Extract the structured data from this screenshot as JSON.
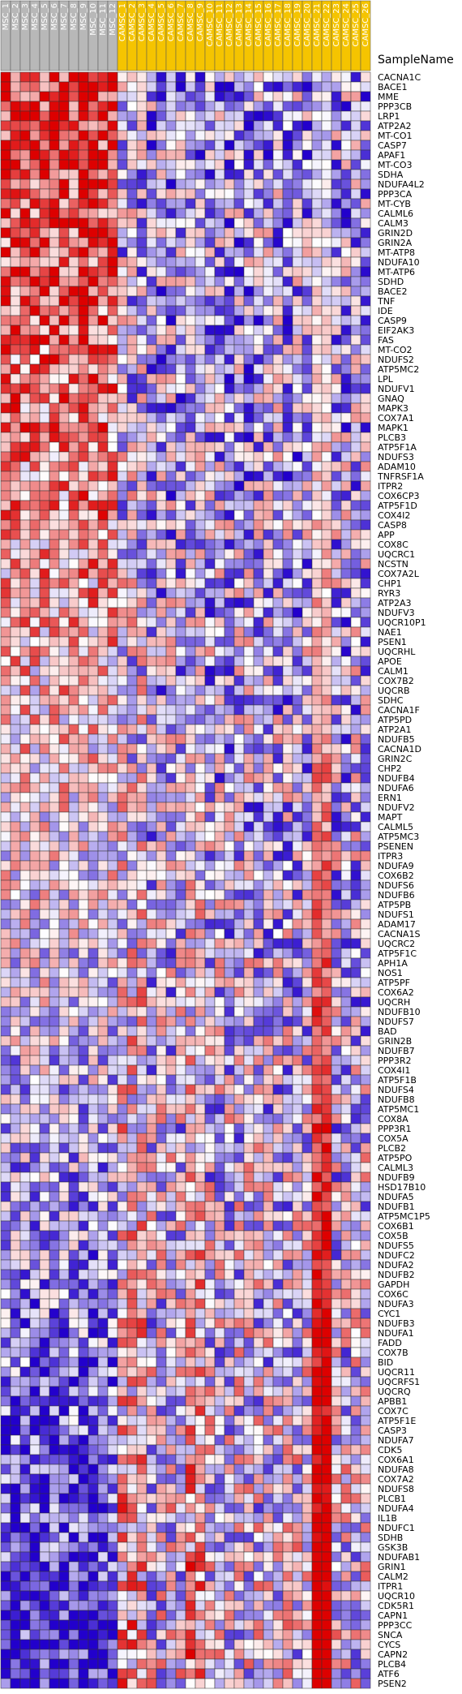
{
  "chart_data": {
    "type": "heatmap",
    "title": "",
    "row_header": "SampleName",
    "columns": [
      {
        "name": "MSC_1",
        "group": "MSC"
      },
      {
        "name": "MSC_2",
        "group": "MSC"
      },
      {
        "name": "MSC_3",
        "group": "MSC"
      },
      {
        "name": "MSC_4",
        "group": "MSC"
      },
      {
        "name": "MSC_5",
        "group": "MSC"
      },
      {
        "name": "MSC_6",
        "group": "MSC"
      },
      {
        "name": "MSC_7",
        "group": "MSC"
      },
      {
        "name": "MSC_8",
        "group": "MSC"
      },
      {
        "name": "MSC_9",
        "group": "MSC"
      },
      {
        "name": "MSC_10",
        "group": "MSC"
      },
      {
        "name": "MSC_11",
        "group": "MSC"
      },
      {
        "name": "MSC_12",
        "group": "MSC"
      },
      {
        "name": "CAMSC_1",
        "group": "CAMSC"
      },
      {
        "name": "CAMSC_2",
        "group": "CAMSC"
      },
      {
        "name": "CAMSC_3",
        "group": "CAMSC"
      },
      {
        "name": "CAMSC_4",
        "group": "CAMSC"
      },
      {
        "name": "CAMSC_5",
        "group": "CAMSC"
      },
      {
        "name": "CAMSC_6",
        "group": "CAMSC"
      },
      {
        "name": "CAMSC_7",
        "group": "CAMSC"
      },
      {
        "name": "CAMSC_8",
        "group": "CAMSC"
      },
      {
        "name": "CAMSC_9",
        "group": "CAMSC"
      },
      {
        "name": "CAMSC_10",
        "group": "CAMSC"
      },
      {
        "name": "CAMSC_11",
        "group": "CAMSC"
      },
      {
        "name": "CAMSC_12",
        "group": "CAMSC"
      },
      {
        "name": "CAMSC_13",
        "group": "CAMSC"
      },
      {
        "name": "CAMSC_14",
        "group": "CAMSC"
      },
      {
        "name": "CAMSC_15",
        "group": "CAMSC"
      },
      {
        "name": "CAMSC_16",
        "group": "CAMSC"
      },
      {
        "name": "CAMSC_17",
        "group": "CAMSC"
      },
      {
        "name": "CAMSC_18",
        "group": "CAMSC"
      },
      {
        "name": "CAMSC_19",
        "group": "CAMSC"
      },
      {
        "name": "CAMSC_20",
        "group": "CAMSC"
      },
      {
        "name": "CAMSC_21",
        "group": "CAMSC"
      },
      {
        "name": "CAMSC_22",
        "group": "CAMSC"
      },
      {
        "name": "CAMSC_23",
        "group": "CAMSC"
      },
      {
        "name": "CAMSC_24",
        "group": "CAMSC"
      },
      {
        "name": "CAMSC_25",
        "group": "CAMSC"
      },
      {
        "name": "CAMSC_26",
        "group": "CAMSC"
      }
    ],
    "group_colors": {
      "MSC": "#b8b8b8",
      "CAMSC": "#f5c400"
    },
    "color_scale": {
      "low": "#2200cc",
      "mid": "#ffffff",
      "high": "#dd0000"
    },
    "rows": [
      "CACNA1C",
      "BACE1",
      "MME",
      "PPP3CB",
      "LRP1",
      "ATP2A2",
      "MT-CO1",
      "CASP7",
      "APAF1",
      "MT-CO3",
      "SDHA",
      "NDUFA4L2",
      "PPP3CA",
      "MT-CYB",
      "CALML6",
      "CALM3",
      "GRIN2D",
      "GRIN2A",
      "MT-ATP8",
      "NDUFA10",
      "MT-ATP6",
      "SDHD",
      "BACE2",
      "TNF",
      "IDE",
      "CASP9",
      "EIF2AK3",
      "FAS",
      "MT-CO2",
      "NDUFS2",
      "ATP5MC2",
      "LPL",
      "NDUFV1",
      "GNAQ",
      "MAPK3",
      "COX7A1",
      "MAPK1",
      "PLCB3",
      "ATP5F1A",
      "NDUFS3",
      "ADAM10",
      "TNFRSF1A",
      "ITPR2",
      "COX6CP3",
      "ATP5F1D",
      "COX4I2",
      "CASP8",
      "APP",
      "COX8C",
      "UQCRC1",
      "NCSTN",
      "COX7A2L",
      "CHP1",
      "RYR3",
      "ATP2A3",
      "NDUFV3",
      "UQCR10P1",
      "NAE1",
      "PSEN1",
      "UQCRHL",
      "APOE",
      "CALM1",
      "COX7B2",
      "UQCRB",
      "SDHC",
      "CACNA1F",
      "ATP5PD",
      "ATP2A1",
      "NDUFB5",
      "CACNA1D",
      "GRIN2C",
      "CHP2",
      "NDUFB4",
      "NDUFA6",
      "ERN1",
      "NDUFV2",
      "MAPT",
      "CALML5",
      "ATP5MC3",
      "PSENEN",
      "ITPR3",
      "NDUFA9",
      "COX6B2",
      "NDUFS6",
      "NDUFB6",
      "ATP5PB",
      "NDUFS1",
      "ADAM17",
      "CACNA1S",
      "UQCRC2",
      "ATP5F1C",
      "APH1A",
      "NOS1",
      "ATP5PF",
      "COX6A2",
      "UQCRH",
      "NDUFB10",
      "NDUFS7",
      "BAD",
      "GRIN2B",
      "NDUFB7",
      "PPP3R2",
      "COX4I1",
      "ATP5F1B",
      "NDUFS4",
      "NDUFB8",
      "ATP5MC1",
      "COX8A",
      "PPP3R1",
      "COX5A",
      "PLCB2",
      "ATP5PO",
      "CALML3",
      "NDUFB9",
      "HSD17B10",
      "NDUFA5",
      "NDUFB1",
      "ATP5MC1P5",
      "COX6B1",
      "COX5B",
      "NDUFS5",
      "NDUFC2",
      "NDUFA2",
      "NDUFB2",
      "GAPDH",
      "COX6C",
      "NDUFA3",
      "CYC1",
      "NDUFB3",
      "NDUFA1",
      "FADD",
      "COX7B",
      "BID",
      "UQCR11",
      "UQCRFS1",
      "UQCRQ",
      "APBB1",
      "COX7C",
      "ATP5F1E",
      "CASP3",
      "NDUFA7",
      "CDK5",
      "COX6A1",
      "NDUFA8",
      "COX7A2",
      "NDUFS8",
      "PLCB1",
      "NDUFA4",
      "IL1B",
      "NDUFC1",
      "SDHB",
      "GSK3B",
      "NDUFAB1",
      "GRIN1",
      "CALM2",
      "ITPR1",
      "UQCR10",
      "CDK5R1",
      "CAPN1",
      "PPP3CC",
      "SNCA",
      "CYCS",
      "CAPN2",
      "PLCB4",
      "ATF6",
      "PSEN2"
    ]
  }
}
